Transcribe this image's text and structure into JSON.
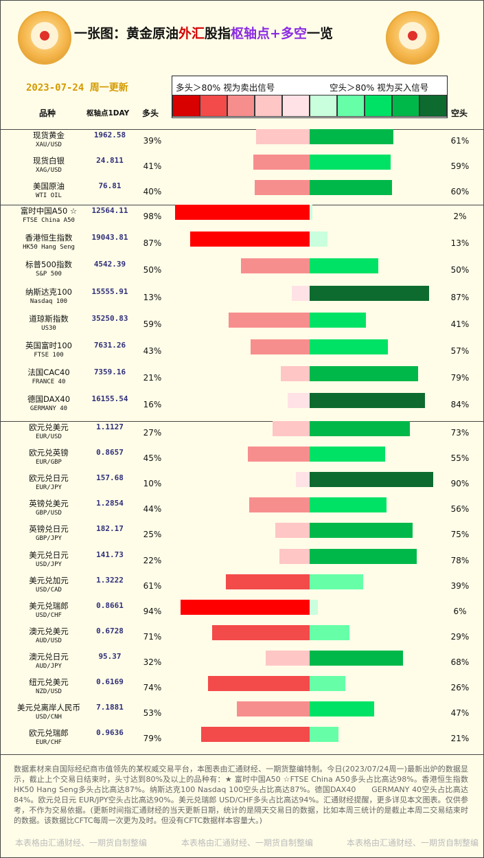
{
  "header": {
    "title_parts": [
      "一张图：黄金原油",
      "外汇",
      "股指",
      "枢轴点+多空",
      "一览"
    ],
    "date": "2023-07-24 周一更新",
    "legend_long": "多头＞80% 视为卖出信号",
    "legend_short": "空头＞80% 视为买入信号",
    "col_name": "品种",
    "col_pivot": "枢轴点1DAY",
    "col_long": "多头",
    "col_short": "空头"
  },
  "colors": {
    "scale": [
      "#d90000",
      "#f34a4a",
      "#f78e8e",
      "#ffc6c6",
      "#ffe2e6",
      "#c9ffdc",
      "#66ffa8",
      "#00e266",
      "#00b84a",
      "#0d6b2f"
    ]
  },
  "chart_data": {
    "type": "bar",
    "title": "一张图：黄金原油外汇股指枢轴点+多空一览",
    "groups": [
      {
        "rows": [
          {
            "name": "现货黄金",
            "code": "XAU/USD",
            "pivot": "1962.58",
            "long": 39,
            "short": 61
          },
          {
            "name": "现货白银",
            "code": "XAG/USD",
            "pivot": "24.811",
            "long": 41,
            "short": 59
          },
          {
            "name": "美国原油",
            "code": "WTI OIL",
            "pivot": "76.81",
            "long": 40,
            "short": 60
          }
        ]
      },
      {
        "rows": [
          {
            "name": "富时中国A50 ☆",
            "code": "FTSE China A50",
            "pivot": "12564.11",
            "long": 98,
            "short": 2
          },
          {
            "name": "香港恒生指数",
            "code": "HK50 Hang Seng",
            "pivot": "19043.81",
            "long": 87,
            "short": 13
          },
          {
            "name": "标普500指数",
            "code": "S&P 500",
            "pivot": "4542.39",
            "long": 50,
            "short": 50
          },
          {
            "name": "纳斯达克100",
            "code": "Nasdaq 100",
            "pivot": "15555.91",
            "long": 13,
            "short": 87
          },
          {
            "name": "道琼斯指数",
            "code": "US30",
            "pivot": "35250.83",
            "long": 59,
            "short": 41
          },
          {
            "name": "英国富时100",
            "code": "FTSE 100",
            "pivot": "7631.26",
            "long": 43,
            "short": 57
          },
          {
            "name": "法国CAC40",
            "code": "FRANCE 40",
            "pivot": "7359.16",
            "long": 21,
            "short": 79
          },
          {
            "name": "德国DAX40",
            "code": "GERMANY 40",
            "pivot": "16155.54",
            "long": 16,
            "short": 84
          }
        ]
      },
      {
        "rows": [
          {
            "name": "欧元兑美元",
            "code": "EUR/USD",
            "pivot": "1.1127",
            "long": 27,
            "short": 73
          },
          {
            "name": "欧元兑英镑",
            "code": "EUR/GBP",
            "pivot": "0.8657",
            "long": 45,
            "short": 55
          },
          {
            "name": "欧元兑日元",
            "code": "EUR/JPY",
            "pivot": "157.68",
            "long": 10,
            "short": 90
          },
          {
            "name": "英镑兑美元",
            "code": "GBP/USD",
            "pivot": "1.2854",
            "long": 44,
            "short": 56
          },
          {
            "name": "英镑兑日元",
            "code": "GBP/JPY",
            "pivot": "182.17",
            "long": 25,
            "short": 75
          },
          {
            "name": "美元兑日元",
            "code": "USD/JPY",
            "pivot": "141.73",
            "long": 22,
            "short": 78
          },
          {
            "name": "美元兑加元",
            "code": "USD/CAD",
            "pivot": "1.3222",
            "long": 61,
            "short": 39
          },
          {
            "name": "美元兑瑞郎",
            "code": "USD/CHF",
            "pivot": "0.8661",
            "long": 94,
            "short": 6
          },
          {
            "name": "澳元兑美元",
            "code": "AUD/USD",
            "pivot": "0.6728",
            "long": 71,
            "short": 29
          },
          {
            "name": "澳元兑日元",
            "code": "AUD/JPY",
            "pivot": "95.37",
            "long": 32,
            "short": 68
          },
          {
            "name": "纽元兑美元",
            "code": "NZD/USD",
            "pivot": "0.6169",
            "long": 74,
            "short": 26
          },
          {
            "name": "美元兑离岸人民币",
            "code": "USD/CNH",
            "pivot": "7.1881",
            "long": 53,
            "short": 47
          },
          {
            "name": "欧元兑瑞郎",
            "code": "EUR/CHF",
            "pivot": "0.9636",
            "long": 79,
            "short": 21
          }
        ]
      }
    ]
  },
  "footer": {
    "text": "数据素材来自国际经纪商市值领先的某权威交易平台，本图表由汇通财经、一期货整编特制。今日(2023/07/24周一)最新出炉的数据显示，截止上个交易日结束时，头寸达到80%及以上的品种有：★ 富时中国A50 ☆FTSE China A50多头占比高达98%。香港恒生指数 HK50 Hang Seng多头占比高达87%。纳斯达克100 Nasdaq 100空头占比高达87%。德国DAX40　　GERMANY 40空头占比高达84%。欧元兑日元 EUR/JPY空头占比高达90%。美元兑瑞郎 USD/CHF多头占比高达94%。汇通财经提醒，更多详见本文图表。仅供参考，不作为交易依据。(更新时间指汇通财经的当天更新日期，统计的是隔天交易日的数据，比如本周三统计的是截止本周二交易结束时的数据。该数据比CFTC每周一次更为及时。但没有CFTC数据样本容量大。)",
    "watermark": "本表格由汇通财经、一期货自制整编"
  }
}
